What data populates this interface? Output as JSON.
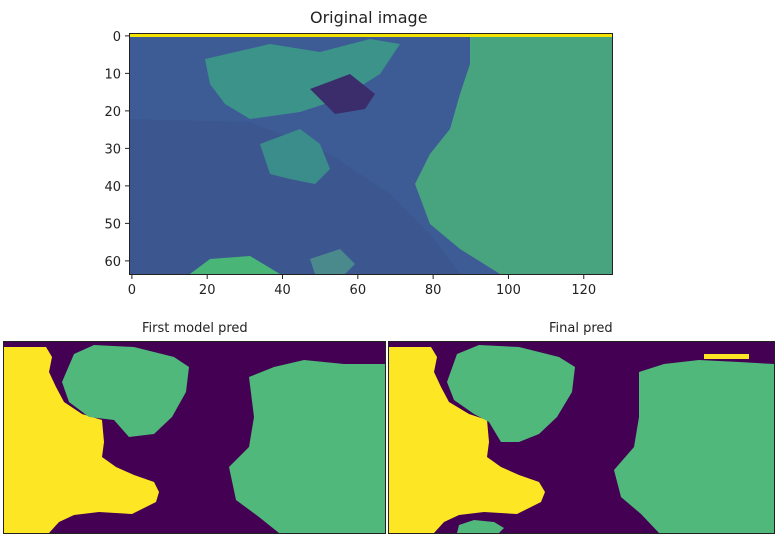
{
  "chart_data": [
    {
      "type": "heatmap",
      "title": "Original image",
      "xlabel": "",
      "ylabel": "",
      "xlim": [
        0,
        127
      ],
      "ylim": [
        63,
        0
      ],
      "xticks": [
        "0",
        "20",
        "40",
        "60",
        "80",
        "100",
        "120"
      ],
      "yticks": [
        "0",
        "10",
        "20",
        "30",
        "40",
        "50",
        "60"
      ],
      "colormap": "viridis",
      "regions": [
        {
          "name": "background",
          "color": "#3e5f98"
        },
        {
          "name": "upper-bright",
          "color": "#3d9a8a"
        },
        {
          "name": "right-bright",
          "color": "#46ae7a"
        },
        {
          "name": "dark-shadow",
          "color": "#3b2d6b"
        },
        {
          "name": "top-edge",
          "color": "#f4e200"
        }
      ]
    },
    {
      "type": "heatmap",
      "title": "First model pred",
      "colormap": "viridis",
      "classes": [
        {
          "value": 0,
          "color": "#440154"
        },
        {
          "value": 1,
          "color": "#50b87a"
        },
        {
          "value": 2,
          "color": "#fde725"
        }
      ]
    },
    {
      "type": "heatmap",
      "title": "Final pred",
      "colormap": "viridis",
      "classes": [
        {
          "value": 0,
          "color": "#440154"
        },
        {
          "value": 1,
          "color": "#50b87a"
        },
        {
          "value": 2,
          "color": "#fde725"
        }
      ]
    }
  ]
}
